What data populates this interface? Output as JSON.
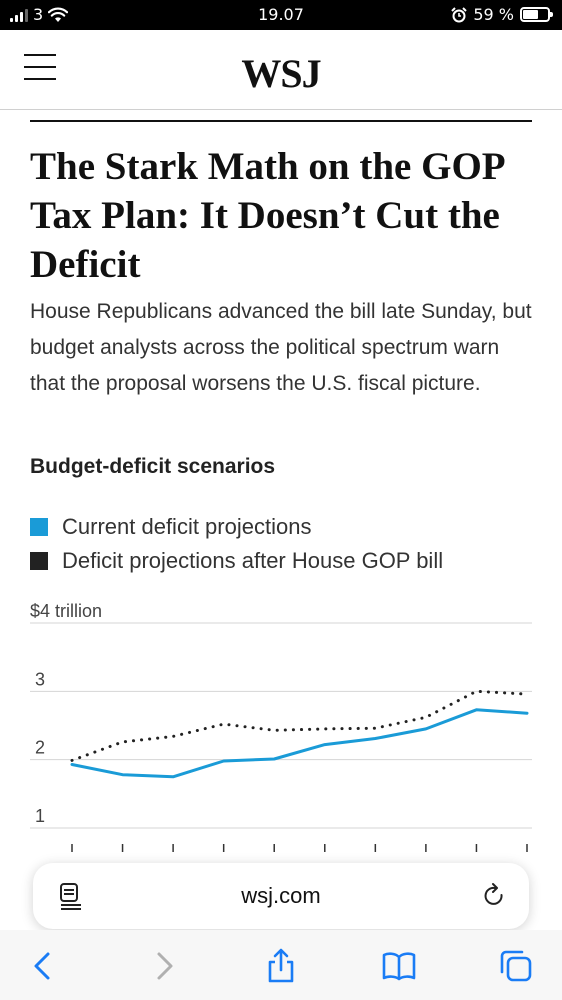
{
  "status_bar": {
    "carrier": "3",
    "time": "19.07",
    "battery": "59 %",
    "battery_level": 0.59
  },
  "header": {
    "logo": "WSJ",
    "menu_icon": "hamburger-menu-icon"
  },
  "article": {
    "headline": "The Stark Math on the GOP Tax Plan: It Doesn’t Cut the Deficit",
    "dek": "House Republicans advanced the bill late Sunday, but budget analysts across the political spectrum warn that the proposal worsens the U.S. fiscal picture."
  },
  "chart_data": {
    "type": "line",
    "title": "Budget-deficit scenarios",
    "y_tick_labels": [
      "$4 trillion",
      "3",
      "2",
      "1"
    ],
    "y_ticks": [
      4,
      3,
      2,
      1
    ],
    "ylim": [
      0.85,
      4
    ],
    "x_tick_count": 10,
    "grid": true,
    "legend_position": "top",
    "series": [
      {
        "name": "Current deficit projections",
        "color": "#1a9bd7",
        "style": "solid",
        "values": [
          1.93,
          1.78,
          1.75,
          1.98,
          2.01,
          2.22,
          2.31,
          2.45,
          2.73,
          2.68
        ]
      },
      {
        "name": "Deficit projections after House GOP bill",
        "color": "#222222",
        "style": "dotted",
        "values": [
          1.99,
          2.26,
          2.34,
          2.52,
          2.43,
          2.45,
          2.46,
          2.62,
          3.0,
          2.96
        ]
      }
    ]
  },
  "browser": {
    "url": "wsj.com",
    "icons": {
      "reader": "reader-mode-icon",
      "reload": "reload-icon",
      "back": "back-chevron-icon",
      "forward": "forward-chevron-icon",
      "share": "share-icon",
      "bookmarks": "bookmarks-icon",
      "tabs": "tabs-icon"
    }
  }
}
